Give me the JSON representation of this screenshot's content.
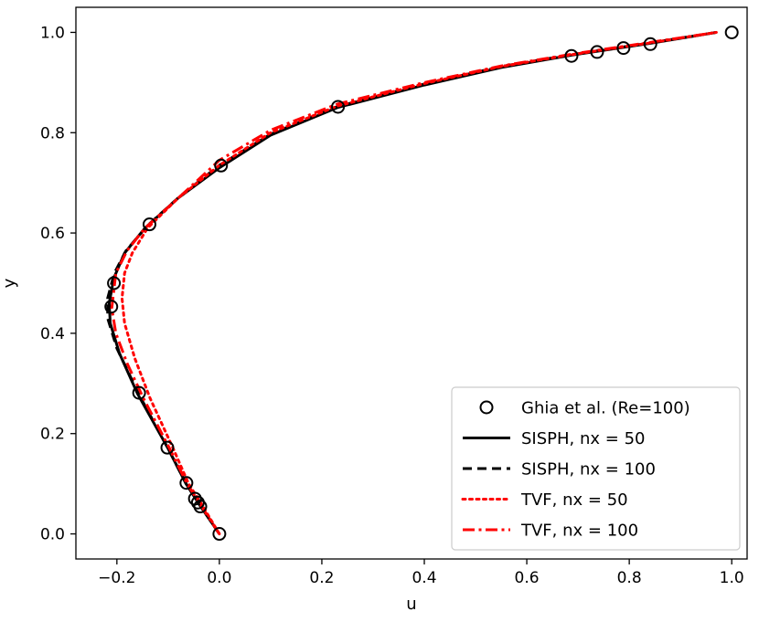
{
  "chart_data": {
    "type": "line",
    "title": "",
    "xlabel": "u",
    "ylabel": "y",
    "xlim": [
      -0.28,
      1.03
    ],
    "ylim": [
      -0.05,
      1.05
    ],
    "xticks": [
      -0.2,
      0.0,
      0.2,
      0.4,
      0.6,
      0.8,
      1.0
    ],
    "xtick_labels": [
      "−0.2",
      "0.0",
      "0.2",
      "0.4",
      "0.6",
      "0.8",
      "1.0"
    ],
    "yticks": [
      0.0,
      0.2,
      0.4,
      0.6,
      0.8,
      1.0
    ],
    "ytick_labels": [
      "0.0",
      "0.2",
      "0.4",
      "0.6",
      "0.8",
      "1.0"
    ],
    "grid": false,
    "legend_position": "lower-right",
    "series": [
      {
        "name": "Ghia et al. (Re=100)",
        "style": "markers",
        "color": "#000000",
        "points": [
          [
            0.0,
            0.0
          ],
          [
            -0.0372,
            0.0547
          ],
          [
            -0.0419,
            0.0625
          ],
          [
            -0.0477,
            0.0703
          ],
          [
            -0.0643,
            0.1016
          ],
          [
            -0.1015,
            0.1719
          ],
          [
            -0.1566,
            0.2813
          ],
          [
            -0.2109,
            0.4531
          ],
          [
            -0.2058,
            0.5
          ],
          [
            -0.1364,
            0.6172
          ],
          [
            0.0033,
            0.7344
          ],
          [
            0.2315,
            0.8516
          ],
          [
            0.6872,
            0.9531
          ],
          [
            0.7372,
            0.9609
          ],
          [
            0.7887,
            0.9688
          ],
          [
            0.8412,
            0.9766
          ],
          [
            1.0,
            1.0
          ]
        ]
      },
      {
        "name": "SISPH, nx = 50",
        "style": "solid",
        "color": "#000000",
        "points": [
          [
            0.0,
            0.0
          ],
          [
            -0.04,
            0.06
          ],
          [
            -0.065,
            0.1
          ],
          [
            -0.1,
            0.17
          ],
          [
            -0.16,
            0.28
          ],
          [
            -0.195,
            0.36
          ],
          [
            -0.213,
            0.42
          ],
          [
            -0.215,
            0.46
          ],
          [
            -0.206,
            0.51
          ],
          [
            -0.185,
            0.56
          ],
          [
            -0.145,
            0.61
          ],
          [
            -0.08,
            0.67
          ],
          [
            0.0,
            0.73
          ],
          [
            0.1,
            0.795
          ],
          [
            0.23,
            0.85
          ],
          [
            0.4,
            0.895
          ],
          [
            0.55,
            0.93
          ],
          [
            0.69,
            0.955
          ],
          [
            0.84,
            0.978
          ],
          [
            0.97,
            1.0
          ]
        ]
      },
      {
        "name": "SISPH, nx = 100",
        "style": "dashed",
        "color": "#000000",
        "points": [
          [
            0.0,
            0.0
          ],
          [
            -0.04,
            0.06
          ],
          [
            -0.065,
            0.1
          ],
          [
            -0.1,
            0.17
          ],
          [
            -0.158,
            0.28
          ],
          [
            -0.2,
            0.37
          ],
          [
            -0.218,
            0.43
          ],
          [
            -0.218,
            0.47
          ],
          [
            -0.205,
            0.52
          ],
          [
            -0.182,
            0.565
          ],
          [
            -0.14,
            0.615
          ],
          [
            -0.075,
            0.675
          ],
          [
            0.0,
            0.735
          ],
          [
            0.1,
            0.797
          ],
          [
            0.23,
            0.852
          ],
          [
            0.4,
            0.897
          ],
          [
            0.55,
            0.932
          ],
          [
            0.69,
            0.956
          ],
          [
            0.84,
            0.979
          ],
          [
            0.97,
            1.0
          ]
        ]
      },
      {
        "name": "TVF, nx = 50",
        "style": "dotted",
        "color": "#ff0000",
        "points": [
          [
            0.0,
            0.0
          ],
          [
            -0.035,
            0.06
          ],
          [
            -0.06,
            0.1
          ],
          [
            -0.09,
            0.17
          ],
          [
            -0.135,
            0.27
          ],
          [
            -0.165,
            0.35
          ],
          [
            -0.185,
            0.42
          ],
          [
            -0.19,
            0.47
          ],
          [
            -0.185,
            0.52
          ],
          [
            -0.17,
            0.56
          ],
          [
            -0.14,
            0.61
          ],
          [
            -0.08,
            0.67
          ],
          [
            0.0,
            0.735
          ],
          [
            0.1,
            0.8
          ],
          [
            0.23,
            0.853
          ],
          [
            0.4,
            0.898
          ],
          [
            0.55,
            0.932
          ],
          [
            0.69,
            0.956
          ],
          [
            0.84,
            0.979
          ],
          [
            0.97,
            1.0
          ]
        ]
      },
      {
        "name": "TVF, nx = 100",
        "style": "dashdot",
        "color": "#ff0000",
        "points": [
          [
            0.0,
            0.0
          ],
          [
            -0.038,
            0.06
          ],
          [
            -0.063,
            0.1
          ],
          [
            -0.097,
            0.17
          ],
          [
            -0.148,
            0.27
          ],
          [
            -0.18,
            0.34
          ],
          [
            -0.202,
            0.4
          ],
          [
            -0.21,
            0.45
          ],
          [
            -0.202,
            0.52
          ],
          [
            -0.18,
            0.565
          ],
          [
            -0.145,
            0.61
          ],
          [
            -0.085,
            0.665
          ],
          [
            0.0,
            0.745
          ],
          [
            0.1,
            0.805
          ],
          [
            0.23,
            0.857
          ],
          [
            0.4,
            0.9
          ],
          [
            0.55,
            0.933
          ],
          [
            0.69,
            0.957
          ],
          [
            0.84,
            0.98
          ],
          [
            0.97,
            1.0
          ]
        ]
      }
    ]
  }
}
